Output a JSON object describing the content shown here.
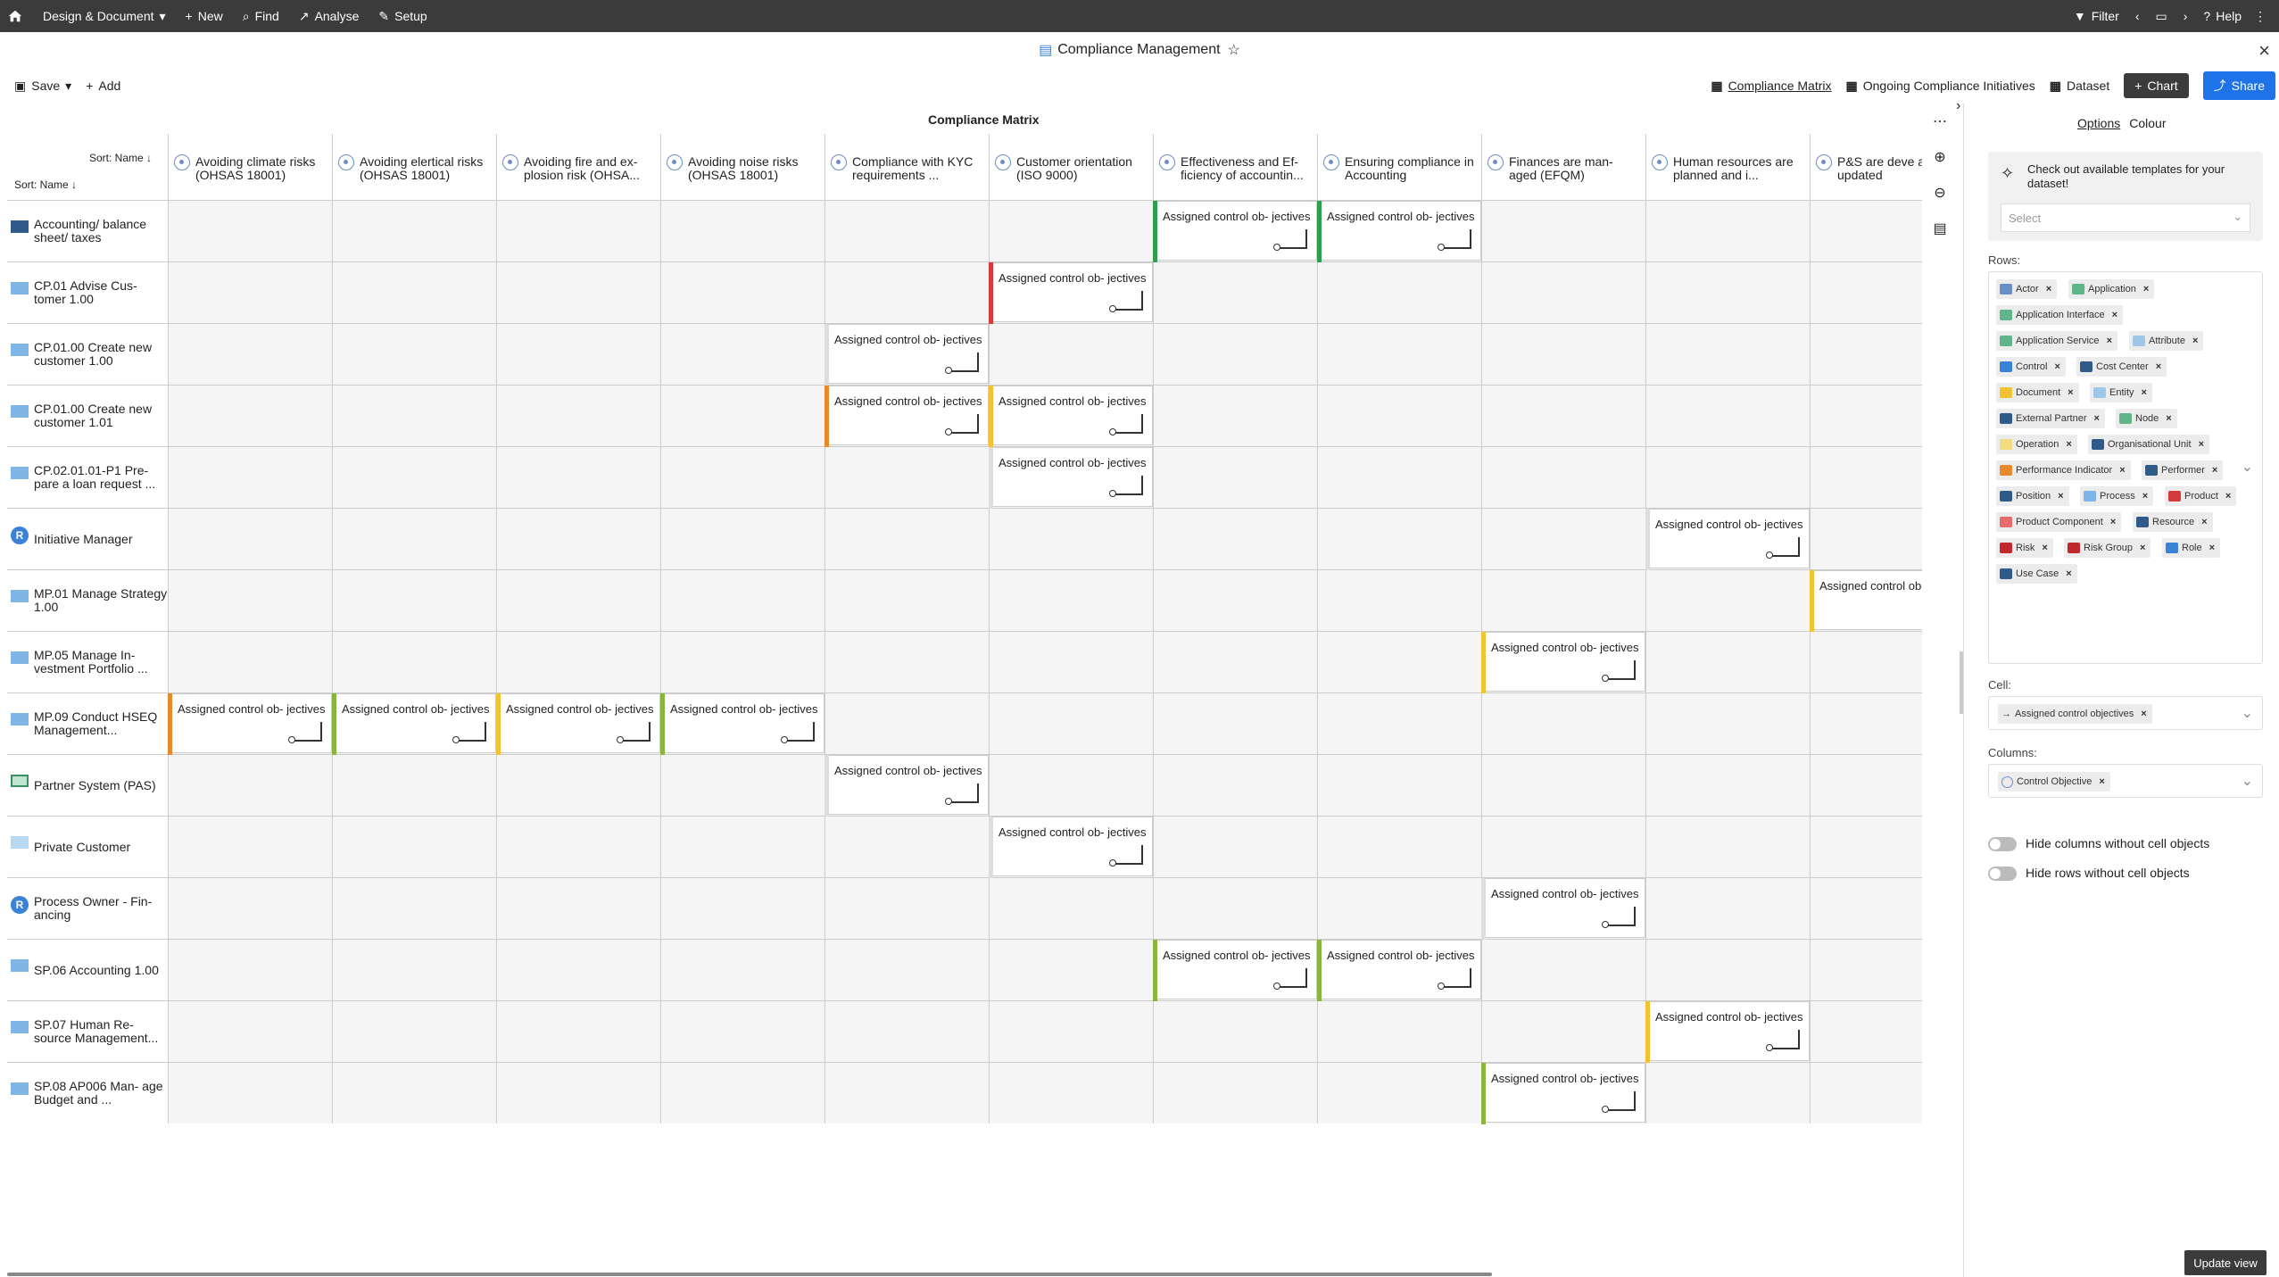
{
  "topbar": {
    "menu": [
      "Design & Document",
      "New",
      "Find",
      "Analyse",
      "Setup"
    ],
    "filter": "Filter",
    "help": "Help"
  },
  "title": "Compliance Management",
  "toolbar": {
    "save": "Save",
    "add": "Add"
  },
  "views": {
    "compliance_matrix": "Compliance Matrix",
    "ongoing": "Ongoing Compliance Initiatives",
    "dataset": "Dataset",
    "chart": "Chart",
    "share": "Share"
  },
  "matrix": {
    "title": "Compliance Matrix",
    "sort_col": "Sort: Name",
    "sort_row": "Sort: Name",
    "columns": [
      "Avoiding climate risks (OHSAS 18001)",
      "Avoiding elertical risks (OHSAS 18001)",
      "Avoiding fire and ex- plosion risk (OHSA...",
      "Avoiding noise risks (OHSAS 18001)",
      "Compliance with KYC requirements ...",
      "Customer orientation (ISO 9000)",
      "Effectiveness and Ef- ficiency of accountin...",
      "Ensuring compliance in Accounting",
      "Finances are man- aged (EFQM)",
      "Human resources are planned and i...",
      "P&S are deve and updated"
    ],
    "rows": [
      {
        "label": "Accounting/ balance sheet/ taxes",
        "icon": "entity-dark"
      },
      {
        "label": "CP.01 Advise Cus- tomer 1.00",
        "icon": "process"
      },
      {
        "label": "CP.01.00 Create new customer 1.00",
        "icon": "process"
      },
      {
        "label": "CP.01.00 Create new customer 1.01",
        "icon": "process"
      },
      {
        "label": "CP.02.01.01-P1 Pre- pare a loan request ...",
        "icon": "process"
      },
      {
        "label": "Initiative Manager",
        "icon": "role"
      },
      {
        "label": "MP.01 Manage Strategy 1.00",
        "icon": "process"
      },
      {
        "label": "MP.05 Manage In- vestment Portfolio ...",
        "icon": "process"
      },
      {
        "label": "MP.09 Conduct HSEQ Management...",
        "icon": "process"
      },
      {
        "label": "Partner System (PAS)",
        "icon": "application"
      },
      {
        "label": "Private Customer",
        "icon": "entity"
      },
      {
        "label": "Process Owner - Fin- ancing",
        "icon": "role"
      },
      {
        "label": "SP.06 Accounting 1.00",
        "icon": "process"
      },
      {
        "label": "SP.07 Human Re- source Management...",
        "icon": "process"
      },
      {
        "label": "SP.08 AP006 Man- age Budget and ...",
        "icon": "process"
      }
    ],
    "cell_text": "Assigned control ob- jectives",
    "cells": [
      {
        "r": 0,
        "c": 6,
        "color": "#2e9e4f"
      },
      {
        "r": 0,
        "c": 7,
        "color": "#2e9e4f"
      },
      {
        "r": 1,
        "c": 5,
        "color": "#d63b3b"
      },
      {
        "r": 2,
        "c": 4,
        "color": "#dddddd"
      },
      {
        "r": 3,
        "c": 4,
        "color": "#e8892b"
      },
      {
        "r": 3,
        "c": 5,
        "color": "#f2c230"
      },
      {
        "r": 4,
        "c": 5,
        "color": "#dddddd"
      },
      {
        "r": 5,
        "c": 9,
        "color": "#dddddd"
      },
      {
        "r": 6,
        "c": 10,
        "color": "#f2c230"
      },
      {
        "r": 7,
        "c": 8,
        "color": "#f2c230"
      },
      {
        "r": 8,
        "c": 0,
        "color": "#e8892b"
      },
      {
        "r": 8,
        "c": 1,
        "color": "#8ab63f"
      },
      {
        "r": 8,
        "c": 2,
        "color": "#f2c230"
      },
      {
        "r": 8,
        "c": 3,
        "color": "#8ab63f"
      },
      {
        "r": 9,
        "c": 4,
        "color": "#dddddd"
      },
      {
        "r": 10,
        "c": 5,
        "color": "#dddddd"
      },
      {
        "r": 11,
        "c": 8,
        "color": "#dddddd"
      },
      {
        "r": 12,
        "c": 6,
        "color": "#8ab63f"
      },
      {
        "r": 12,
        "c": 7,
        "color": "#8ab63f"
      },
      {
        "r": 13,
        "c": 9,
        "color": "#f2c230"
      },
      {
        "r": 14,
        "c": 8,
        "color": "#8ab63f"
      }
    ]
  },
  "panel": {
    "tabs": [
      "Options",
      "Colour"
    ],
    "template_text": "Check out available templates for your dataset!",
    "select_placeholder": "Select",
    "rows_label": "Rows:",
    "row_chips": [
      {
        "label": "Actor",
        "color": "#6a8fc6"
      },
      {
        "label": "Application",
        "color": "#5fb48a"
      },
      {
        "label": "Application Interface",
        "color": "#5fb48a"
      },
      {
        "label": "Application Service",
        "color": "#5fb48a"
      },
      {
        "label": "Attribute",
        "color": "#9fc6e8"
      },
      {
        "label": "Control",
        "color": "#3a82d6"
      },
      {
        "label": "Cost Center",
        "color": "#2f5a8a"
      },
      {
        "label": "Document",
        "color": "#f2c230"
      },
      {
        "label": "Entity",
        "color": "#9fc6e8"
      },
      {
        "label": "External Partner",
        "color": "#2f5a8a"
      },
      {
        "label": "Node",
        "color": "#5fb48a"
      },
      {
        "label": "Operation",
        "color": "#f2dc80"
      },
      {
        "label": "Organisational Unit",
        "color": "#2f5a8a"
      },
      {
        "label": "Performance Indicator",
        "color": "#e8892b"
      },
      {
        "label": "Performer",
        "color": "#2f5a8a"
      },
      {
        "label": "Position",
        "color": "#2f5a8a"
      },
      {
        "label": "Process",
        "color": "#7fb6e6"
      },
      {
        "label": "Product",
        "color": "#d63b3b"
      },
      {
        "label": "Product Component",
        "color": "#e86a6a"
      },
      {
        "label": "Resource",
        "color": "#2f5a8a"
      },
      {
        "label": "Risk",
        "color": "#c0282d"
      },
      {
        "label": "Risk Group",
        "color": "#c0282d"
      },
      {
        "label": "Role",
        "color": "#3a82d6"
      },
      {
        "label": "Use Case",
        "color": "#2f5a8a"
      }
    ],
    "cell_label": "Cell:",
    "cell_chip": "Assigned control objectives",
    "columns_label": "Columns:",
    "column_chip": "Control Objective",
    "toggle1": "Hide columns without cell objects",
    "toggle2": "Hide rows without cell objects",
    "update": "Update view"
  }
}
